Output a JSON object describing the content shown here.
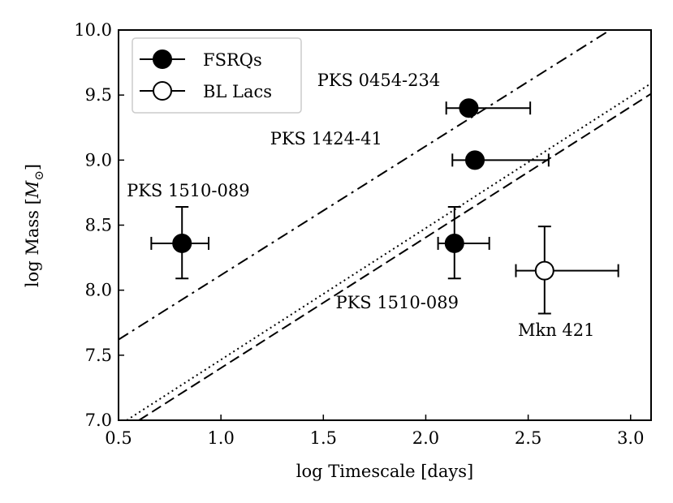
{
  "chart_data": {
    "type": "scatter",
    "title": "",
    "xlabel": "log Timescale [days]",
    "ylabel_prefix": "log Mass [",
    "ylabel_symbol": "M",
    "ylabel_subscript": "⊙",
    "ylabel_suffix": "]",
    "xlim": [
      0.5,
      3.1
    ],
    "ylim": [
      7.0,
      10.0
    ],
    "xticks": [
      0.5,
      1.0,
      1.5,
      2.0,
      2.5,
      3.0
    ],
    "xtick_labels": [
      "0.5",
      "1.0",
      "1.5",
      "2.0",
      "2.5",
      "3.0"
    ],
    "yticks": [
      7.0,
      7.5,
      8.0,
      8.5,
      9.0,
      9.5,
      10.0
    ],
    "ytick_labels": [
      "7.0",
      "7.5",
      "8.0",
      "8.5",
      "9.0",
      "9.5",
      "10.0"
    ],
    "legend": [
      {
        "label": "FSRQs",
        "marker": "filled-circle"
      },
      {
        "label": "BL Lacs",
        "marker": "open-circle"
      }
    ],
    "legend_position": "top-left",
    "series": [
      {
        "name": "FSRQs",
        "marker": "filled-circle",
        "points": [
          {
            "x": 2.21,
            "y": 9.4,
            "xerr": [
              0.11,
              0.3
            ],
            "yerr": [
              0,
              0
            ]
          },
          {
            "x": 2.24,
            "y": 9.0,
            "xerr": [
              0.11,
              0.36
            ],
            "yerr": [
              0,
              0
            ]
          },
          {
            "x": 0.81,
            "y": 8.36,
            "xerr": [
              0.15,
              0.13
            ],
            "yerr": [
              0.27,
              0.28
            ]
          },
          {
            "x": 2.14,
            "y": 8.36,
            "xerr": [
              0.08,
              0.17
            ],
            "yerr": [
              0.27,
              0.28
            ]
          }
        ]
      },
      {
        "name": "BL Lacs",
        "marker": "open-circle",
        "points": [
          {
            "x": 2.58,
            "y": 8.15,
            "xerr": [
              0.14,
              0.36
            ],
            "yerr": [
              0.33,
              0.34
            ]
          }
        ]
      }
    ],
    "lines": [
      {
        "style": "dashdot",
        "x": [
          0.5,
          2.9
        ],
        "y": [
          7.62,
          10.0
        ]
      },
      {
        "style": "dotted",
        "x": [
          0.54,
          3.1
        ],
        "y": [
          7.0,
          9.59
        ]
      },
      {
        "style": "dashed",
        "x": [
          0.6,
          3.1
        ],
        "y": [
          7.0,
          9.51
        ]
      }
    ],
    "annotations": [
      {
        "text": "PKS 0454-234",
        "x": 1.47,
        "y": 9.57
      },
      {
        "text": "PKS 1424-41",
        "x": 1.24,
        "y": 9.12
      },
      {
        "text": "PKS 1510-089",
        "x": 0.54,
        "y": 8.72
      },
      {
        "text": "PKS 1510-089",
        "x": 1.56,
        "y": 7.86
      },
      {
        "text": "Mkn 421",
        "x": 2.45,
        "y": 7.65
      }
    ]
  }
}
